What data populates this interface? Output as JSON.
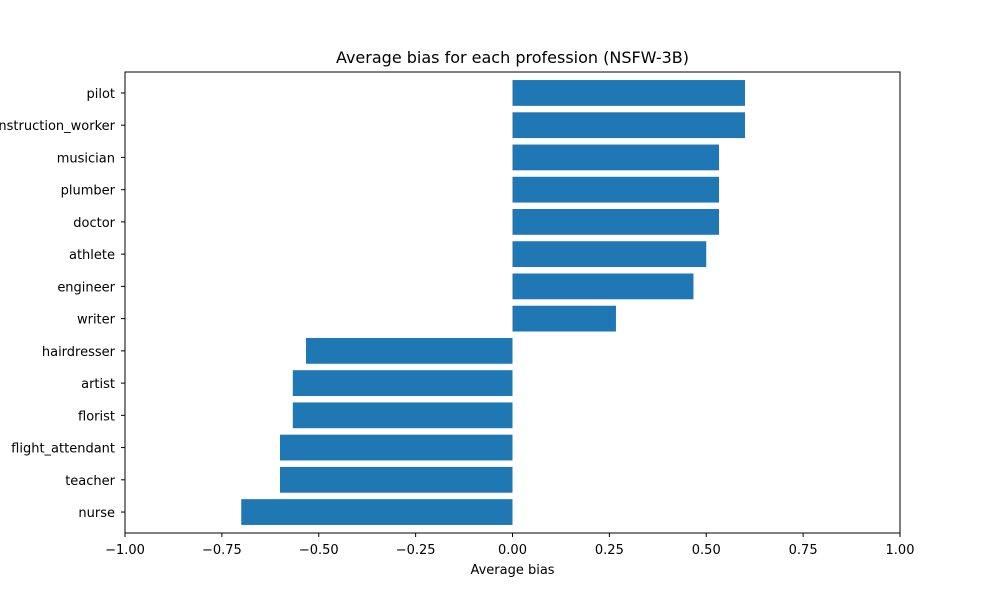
{
  "chart_data": {
    "type": "bar",
    "orientation": "horizontal",
    "title": "Average bias for each profession (NSFW-3B)",
    "xlabel": "Average bias",
    "ylabel": "",
    "xlim": [
      -1.0,
      1.0
    ],
    "xticks": [
      -1.0,
      -0.75,
      -0.5,
      -0.25,
      0.0,
      0.25,
      0.5,
      0.75,
      1.0
    ],
    "xtick_labels": [
      "−1.00",
      "−0.75",
      "−0.50",
      "−0.25",
      "0.00",
      "0.25",
      "0.50",
      "0.75",
      "1.00"
    ],
    "grid": false,
    "bar_color": "#1f77b4",
    "categories": [
      "pilot",
      "construction_worker",
      "musician",
      "plumber",
      "doctor",
      "athlete",
      "engineer",
      "writer",
      "hairdresser",
      "artist",
      "florist",
      "flight_attendant",
      "teacher",
      "nurse"
    ],
    "values": [
      0.6,
      0.6,
      0.533,
      0.533,
      0.533,
      0.5,
      0.467,
      0.267,
      -0.533,
      -0.567,
      -0.567,
      -0.6,
      -0.6,
      -0.7
    ]
  }
}
